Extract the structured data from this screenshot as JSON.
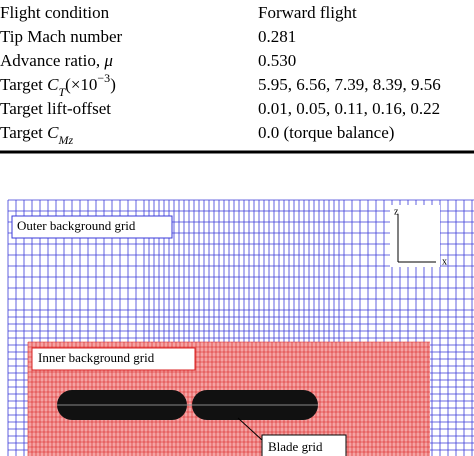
{
  "table": {
    "rows": [
      {
        "label": [
          {
            "text": "Flight condition",
            "style": "normal"
          }
        ],
        "value": "Forward flight"
      },
      {
        "label": [
          {
            "text": "Tip Mach number",
            "style": "normal"
          }
        ],
        "value": "0.281"
      },
      {
        "label": [
          {
            "text": "Advance ratio, ",
            "style": "normal"
          },
          {
            "text": "μ",
            "style": "italic"
          }
        ],
        "value": "0.530"
      },
      {
        "label": [
          {
            "text": "Target ",
            "style": "normal"
          },
          {
            "text": "C",
            "style": "italic"
          },
          {
            "text": "T",
            "style": "italic-sub"
          },
          {
            "text": "(×10",
            "style": "normal"
          },
          {
            "text": "−3",
            "style": "sup"
          },
          {
            "text": ")",
            "style": "normal"
          }
        ],
        "value": "5.95, 6.56, 7.39, 8.39, 9.56"
      },
      {
        "label": [
          {
            "text": "Target lift-offset",
            "style": "normal"
          }
        ],
        "value": "0.01, 0.05, 0.11, 0.16, 0.22"
      },
      {
        "label": [
          {
            "text": "Target ",
            "style": "normal"
          },
          {
            "text": "C",
            "style": "italic"
          },
          {
            "text": "Mz",
            "style": "italic-sub"
          }
        ],
        "value": "0.0 (torque balance)"
      }
    ]
  },
  "figure": {
    "labels": {
      "outer": "Outer background grid",
      "inner": "Inner background grid",
      "blade": "Blade grid",
      "axis_z": "z",
      "axis_x": "x"
    }
  }
}
